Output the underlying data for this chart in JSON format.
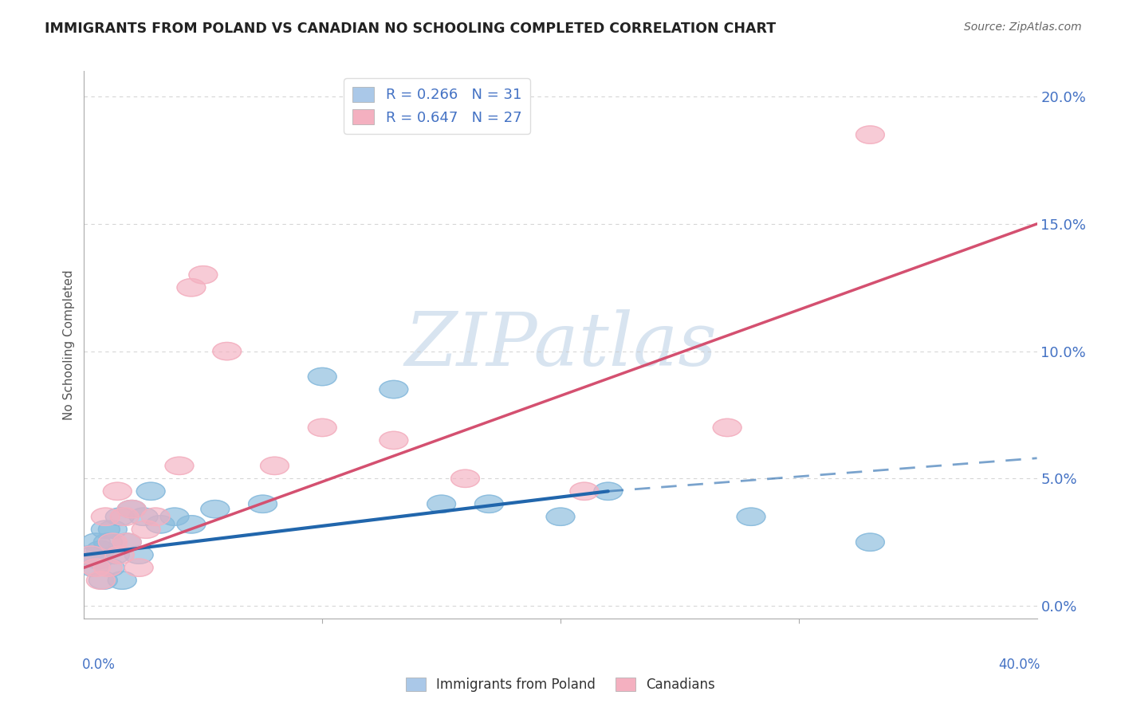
{
  "title": "IMMIGRANTS FROM POLAND VS CANADIAN NO SCHOOLING COMPLETED CORRELATION CHART",
  "source": "Source: ZipAtlas.com",
  "ylabel": "No Schooling Completed",
  "ylabel_ticks": [
    "0.0%",
    "5.0%",
    "10.0%",
    "15.0%",
    "20.0%"
  ],
  "ylabel_vals": [
    0.0,
    5.0,
    10.0,
    15.0,
    20.0
  ],
  "xlim": [
    0.0,
    40.0
  ],
  "ylim": [
    -0.5,
    21.0
  ],
  "blue_scatter_x": [
    0.2,
    0.4,
    0.5,
    0.6,
    0.7,
    0.8,
    0.9,
    1.0,
    1.1,
    1.2,
    1.3,
    1.5,
    1.6,
    1.8,
    2.0,
    2.3,
    2.5,
    2.8,
    3.2,
    3.8,
    4.5,
    5.5,
    7.5,
    10.0,
    13.0,
    15.0,
    17.0,
    20.0,
    22.0,
    28.0,
    33.0
  ],
  "blue_scatter_y": [
    2.0,
    1.5,
    2.5,
    1.8,
    2.2,
    1.0,
    3.0,
    2.5,
    1.5,
    3.0,
    2.0,
    3.5,
    1.0,
    2.5,
    3.8,
    2.0,
    3.5,
    4.5,
    3.2,
    3.5,
    3.2,
    3.8,
    4.0,
    9.0,
    8.5,
    4.0,
    4.0,
    3.5,
    4.5,
    3.5,
    2.5
  ],
  "pink_scatter_x": [
    0.3,
    0.5,
    0.7,
    0.9,
    1.0,
    1.2,
    1.4,
    1.5,
    1.7,
    1.8,
    2.0,
    2.3,
    2.6,
    3.0,
    4.0,
    4.5,
    5.0,
    6.0,
    8.0,
    10.0,
    13.0,
    16.0,
    21.0,
    27.0,
    33.0
  ],
  "pink_scatter_y": [
    2.0,
    1.5,
    1.0,
    3.5,
    1.5,
    2.5,
    4.5,
    2.0,
    3.5,
    2.5,
    3.8,
    1.5,
    3.0,
    3.5,
    5.5,
    12.5,
    13.0,
    10.0,
    5.5,
    7.0,
    6.5,
    5.0,
    4.5,
    7.0,
    18.5
  ],
  "pink_outlier_x": [
    33.0
  ],
  "pink_outlier_y": [
    18.5
  ],
  "blue_line_x1": 0.0,
  "blue_line_y1": 2.0,
  "blue_line_x2": 22.0,
  "blue_line_y2": 4.5,
  "blue_dash_x1": 22.0,
  "blue_dash_y1": 4.5,
  "blue_dash_x2": 40.0,
  "blue_dash_y2": 5.8,
  "pink_line_x1": 0.0,
  "pink_line_y1": 1.5,
  "pink_line_x2": 40.0,
  "pink_line_y2": 15.0,
  "blue_color": "#88bbdd",
  "pink_color": "#f4b0c0",
  "blue_line_color": "#2166ac",
  "pink_line_color": "#d45070",
  "blue_legend_color": "#aac8e8",
  "pink_legend_color": "#f4b0c0",
  "watermark_text": "ZIPatlas",
  "watermark_color": "#d8e4f0",
  "background_color": "#ffffff",
  "grid_color": "#cccccc",
  "tick_color": "#4472c4",
  "title_color": "#222222",
  "source_color": "#666666"
}
